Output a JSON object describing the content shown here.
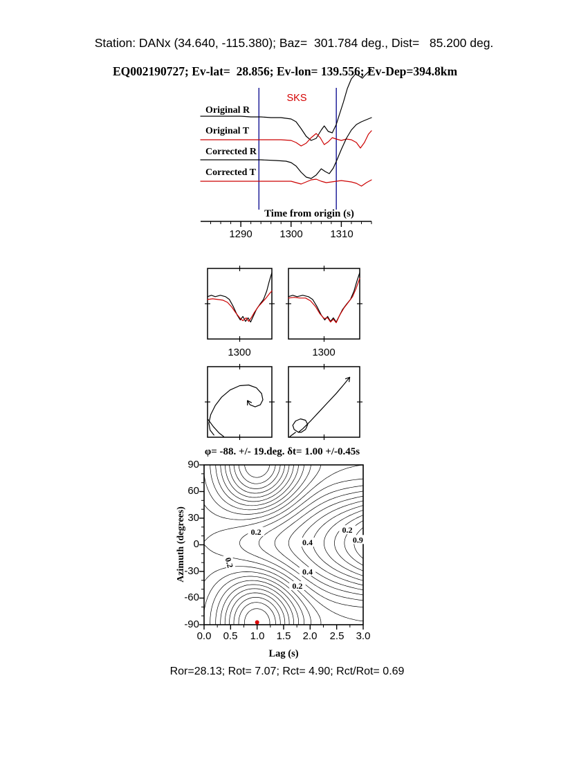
{
  "header": {
    "line1": "Station: DANx (34.640, -115.380); Baz=  301.784 deg., Dist=   85.200 deg.",
    "line2": "EQ002190727; Ev-lat=  28.856; Ev-lon= 139.556; Ev-Dep=394.8km"
  },
  "footer": {
    "stats": "Ror=28.13; Rot= 7.07; Rct= 4.90; Rct/Rot= 0.69"
  },
  "colors": {
    "trace_black": "#000000",
    "trace_red": "#cc0000",
    "window_line_blue": "#00008b",
    "phase_label_red": "#d40000",
    "best_marker_red": "#dd0000"
  },
  "chart_data": [
    {
      "id": "waveform-traces",
      "type": "line",
      "phase_label": "SKS",
      "xlabel": "Time from origin (s)",
      "xlim": [
        1282,
        1316
      ],
      "xticks": [
        1290,
        1300,
        1310
      ],
      "window_s": [
        1293.6,
        1309.0
      ],
      "traces": [
        {
          "name": "Original R",
          "color": "#000000",
          "baseline": 170,
          "points": [
            [
              1282,
              2
            ],
            [
              1286,
              2
            ],
            [
              1290,
              2
            ],
            [
              1292,
              1
            ],
            [
              1294,
              1
            ],
            [
              1296,
              0
            ],
            [
              1298,
              0
            ],
            [
              1300,
              -2
            ],
            [
              1301,
              -6
            ],
            [
              1302,
              -16
            ],
            [
              1303,
              -27
            ],
            [
              1304,
              -33
            ],
            [
              1305,
              -30
            ],
            [
              1306,
              -18
            ],
            [
              1306.6,
              -12
            ],
            [
              1307.4,
              -20
            ],
            [
              1308.2,
              -22
            ],
            [
              1309,
              -10
            ],
            [
              1309.6,
              4
            ],
            [
              1310.4,
              22
            ],
            [
              1311.2,
              42
            ],
            [
              1312,
              56
            ],
            [
              1312.8,
              63
            ],
            [
              1313.6,
              60
            ],
            [
              1314.2,
              57
            ],
            [
              1314.8,
              62
            ],
            [
              1315.4,
              66
            ],
            [
              1316,
              70
            ]
          ]
        },
        {
          "name": "Original T",
          "color": "#cc0000",
          "baseline": 202,
          "points": [
            [
              1282,
              0
            ],
            [
              1288,
              0
            ],
            [
              1294,
              0
            ],
            [
              1298,
              0
            ],
            [
              1300,
              -1
            ],
            [
              1301,
              -4
            ],
            [
              1302,
              -9
            ],
            [
              1303,
              -5
            ],
            [
              1304,
              3
            ],
            [
              1305,
              9
            ],
            [
              1305.8,
              3
            ],
            [
              1306.6,
              -7
            ],
            [
              1307.4,
              -3
            ],
            [
              1308.2,
              3
            ],
            [
              1309,
              1
            ],
            [
              1310,
              -1
            ],
            [
              1311,
              1
            ],
            [
              1312,
              0
            ],
            [
              1313,
              -4
            ],
            [
              1313.8,
              -12
            ],
            [
              1314.6,
              -4
            ],
            [
              1315.4,
              8
            ],
            [
              1316,
              13
            ]
          ]
        },
        {
          "name": "Corrected R",
          "color": "#000000",
          "baseline": 232,
          "points": [
            [
              1282,
              1
            ],
            [
              1288,
              1
            ],
            [
              1294,
              1
            ],
            [
              1297,
              0
            ],
            [
              1299,
              -1
            ],
            [
              1300,
              -3
            ],
            [
              1301,
              -8
            ],
            [
              1302,
              -17
            ],
            [
              1303,
              -24
            ],
            [
              1304,
              -26
            ],
            [
              1305,
              -21
            ],
            [
              1306,
              -12
            ],
            [
              1306.8,
              -16
            ],
            [
              1307.6,
              -19
            ],
            [
              1308.4,
              -11
            ],
            [
              1309.2,
              2
            ],
            [
              1310,
              16
            ],
            [
              1311,
              32
            ],
            [
              1312,
              44
            ],
            [
              1313,
              52
            ],
            [
              1314,
              56
            ],
            [
              1315,
              59
            ],
            [
              1316,
              62
            ]
          ]
        },
        {
          "name": "Corrected T",
          "color": "#cc0000",
          "baseline": 262,
          "points": [
            [
              1282,
              0
            ],
            [
              1290,
              0
            ],
            [
              1296,
              0
            ],
            [
              1300,
              0
            ],
            [
              1301,
              -2
            ],
            [
              1302,
              -4
            ],
            [
              1303,
              -1
            ],
            [
              1304,
              2
            ],
            [
              1305,
              3
            ],
            [
              1306,
              0
            ],
            [
              1307,
              -2
            ],
            [
              1308,
              -1
            ],
            [
              1309,
              0
            ],
            [
              1310,
              1
            ],
            [
              1311,
              0
            ],
            [
              1312,
              -1
            ],
            [
              1313,
              -3
            ],
            [
              1314,
              -7
            ],
            [
              1315,
              -2
            ],
            [
              1316,
              2
            ]
          ]
        }
      ]
    },
    {
      "id": "window-panel-original",
      "type": "line",
      "xticks": [
        1300
      ],
      "series": [
        {
          "name": "R",
          "color": "#000000",
          "points": [
            [
              0,
              0.4
            ],
            [
              0.06,
              0.38
            ],
            [
              0.12,
              0.4
            ],
            [
              0.2,
              0.38
            ],
            [
              0.28,
              0.4
            ],
            [
              0.34,
              0.44
            ],
            [
              0.4,
              0.54
            ],
            [
              0.46,
              0.66
            ],
            [
              0.51,
              0.73
            ],
            [
              0.55,
              0.68
            ],
            [
              0.59,
              0.75
            ],
            [
              0.63,
              0.7
            ],
            [
              0.67,
              0.76
            ],
            [
              0.71,
              0.68
            ],
            [
              0.76,
              0.58
            ],
            [
              0.82,
              0.5
            ],
            [
              0.87,
              0.44
            ],
            [
              0.92,
              0.32
            ],
            [
              0.96,
              0.18
            ],
            [
              1,
              0.06
            ]
          ]
        },
        {
          "name": "T",
          "color": "#cc0000",
          "points": [
            [
              0,
              0.44
            ],
            [
              0.08,
              0.43
            ],
            [
              0.16,
              0.44
            ],
            [
              0.24,
              0.45
            ],
            [
              0.31,
              0.48
            ],
            [
              0.38,
              0.55
            ],
            [
              0.44,
              0.63
            ],
            [
              0.5,
              0.7
            ],
            [
              0.55,
              0.74
            ],
            [
              0.6,
              0.7
            ],
            [
              0.64,
              0.75
            ],
            [
              0.68,
              0.7
            ],
            [
              0.73,
              0.62
            ],
            [
              0.79,
              0.54
            ],
            [
              0.85,
              0.48
            ],
            [
              0.91,
              0.42
            ],
            [
              0.96,
              0.36
            ],
            [
              1,
              0.32
            ]
          ]
        }
      ]
    },
    {
      "id": "window-panel-corrected",
      "type": "line",
      "xticks": [
        1300
      ],
      "series": [
        {
          "name": "R",
          "color": "#000000",
          "points": [
            [
              0,
              0.4
            ],
            [
              0.06,
              0.38
            ],
            [
              0.12,
              0.4
            ],
            [
              0.2,
              0.38
            ],
            [
              0.28,
              0.4
            ],
            [
              0.34,
              0.44
            ],
            [
              0.4,
              0.54
            ],
            [
              0.46,
              0.66
            ],
            [
              0.51,
              0.73
            ],
            [
              0.55,
              0.68
            ],
            [
              0.59,
              0.75
            ],
            [
              0.63,
              0.7
            ],
            [
              0.67,
              0.76
            ],
            [
              0.71,
              0.68
            ],
            [
              0.76,
              0.58
            ],
            [
              0.82,
              0.5
            ],
            [
              0.87,
              0.44
            ],
            [
              0.92,
              0.32
            ],
            [
              0.96,
              0.18
            ],
            [
              1,
              0.06
            ]
          ]
        },
        {
          "name": "T",
          "color": "#cc0000",
          "points": [
            [
              0,
              0.42
            ],
            [
              0.08,
              0.41
            ],
            [
              0.16,
              0.42
            ],
            [
              0.24,
              0.42
            ],
            [
              0.31,
              0.46
            ],
            [
              0.38,
              0.54
            ],
            [
              0.44,
              0.64
            ],
            [
              0.5,
              0.71
            ],
            [
              0.55,
              0.7
            ],
            [
              0.59,
              0.76
            ],
            [
              0.63,
              0.72
            ],
            [
              0.67,
              0.77
            ],
            [
              0.72,
              0.66
            ],
            [
              0.78,
              0.56
            ],
            [
              0.84,
              0.48
            ],
            [
              0.9,
              0.4
            ],
            [
              0.95,
              0.28
            ],
            [
              1,
              0.14
            ]
          ]
        }
      ]
    },
    {
      "id": "particle-motion-original",
      "type": "line",
      "series": [
        {
          "name": "loop",
          "color": "#000000",
          "arrow": true,
          "points": [
            [
              0.1,
              0.97
            ],
            [
              0.04,
              0.9
            ],
            [
              0.02,
              0.8
            ],
            [
              0.05,
              0.68
            ],
            [
              0.12,
              0.55
            ],
            [
              0.22,
              0.43
            ],
            [
              0.35,
              0.33
            ],
            [
              0.5,
              0.27
            ],
            [
              0.64,
              0.26
            ],
            [
              0.76,
              0.3
            ],
            [
              0.84,
              0.38
            ],
            [
              0.86,
              0.47
            ],
            [
              0.82,
              0.54
            ],
            [
              0.74,
              0.57
            ],
            [
              0.66,
              0.54
            ],
            [
              0.62,
              0.48
            ]
          ]
        },
        {
          "name": "tail",
          "color": "#000000",
          "arrow": false,
          "points": [
            [
              0.01,
              0.75
            ],
            [
              0.09,
              0.85
            ],
            [
              0.18,
              0.94
            ],
            [
              0.25,
              0.99
            ]
          ]
        }
      ]
    },
    {
      "id": "particle-motion-corrected",
      "type": "line",
      "series": [
        {
          "name": "loop-line",
          "color": "#000000",
          "arrow": true,
          "points": [
            [
              0.14,
              0.93
            ],
            [
              0.08,
              0.89
            ],
            [
              0.06,
              0.83
            ],
            [
              0.1,
              0.77
            ],
            [
              0.17,
              0.74
            ],
            [
              0.24,
              0.76
            ],
            [
              0.27,
              0.82
            ],
            [
              0.24,
              0.89
            ],
            [
              0.18,
              0.93
            ],
            [
              0.14,
              0.93
            ],
            [
              0.2,
              0.88
            ],
            [
              0.3,
              0.78
            ],
            [
              0.42,
              0.65
            ],
            [
              0.55,
              0.51
            ],
            [
              0.67,
              0.38
            ],
            [
              0.78,
              0.25
            ],
            [
              0.86,
              0.15
            ]
          ]
        },
        {
          "name": "tail",
          "color": "#000000",
          "arrow": false,
          "points": [
            [
              0.02,
              0.99
            ],
            [
              0.1,
              0.93
            ]
          ]
        }
      ]
    },
    {
      "id": "error-surface",
      "type": "contour",
      "title": "φ= -88. +/- 19.deg. δt= 1.00 +/-0.45s",
      "xlabel": "Lag (s)",
      "ylabel": "Azimuth (degrees)",
      "xlim": [
        0,
        3
      ],
      "ylim": [
        -90,
        90
      ],
      "xticks": [
        "0.0",
        "0.5",
        "1.0",
        "1.5",
        "2.0",
        "2.5",
        "3.0"
      ],
      "yticks": [
        90,
        60,
        30,
        0,
        -30,
        -60,
        -90
      ],
      "best_solution": {
        "phi_deg": -88,
        "phi_err_deg": 19,
        "dt_s": 1.0,
        "dt_err_s": 0.45,
        "lag": 1.0,
        "azimuth": -88
      },
      "contour_levels": [
        0.1,
        0.14,
        0.18,
        0.22,
        0.26,
        0.3,
        0.34,
        0.38,
        0.42,
        0.46,
        0.5,
        0.54,
        0.58,
        0.62,
        0.66,
        0.7,
        0.74,
        0.78,
        0.82,
        0.86,
        0.9
      ],
      "contour_labels": [
        {
          "text": "0.2",
          "lag": 0.98,
          "az": 15,
          "rot": 0
        },
        {
          "text": "0.4",
          "lag": 1.95,
          "az": 3,
          "rot": 0
        },
        {
          "text": "0.2",
          "lag": 2.7,
          "az": 17,
          "rot": 0
        },
        {
          "text": "0.9",
          "lag": 2.9,
          "az": 6,
          "rot": 0
        },
        {
          "text": "0.4",
          "lag": 1.95,
          "az": -30,
          "rot": 0
        },
        {
          "text": "0.2",
          "lag": 1.76,
          "az": -46,
          "rot": 0
        },
        {
          "text": "0.2",
          "lag": 0.48,
          "az": -20,
          "rot": 75
        }
      ],
      "model": {
        "phi0": -88,
        "dt0": 1.0,
        "sigma": 0.55,
        "amp": 0.44,
        "base": 0.5,
        "pow": 1.6
      }
    }
  ]
}
